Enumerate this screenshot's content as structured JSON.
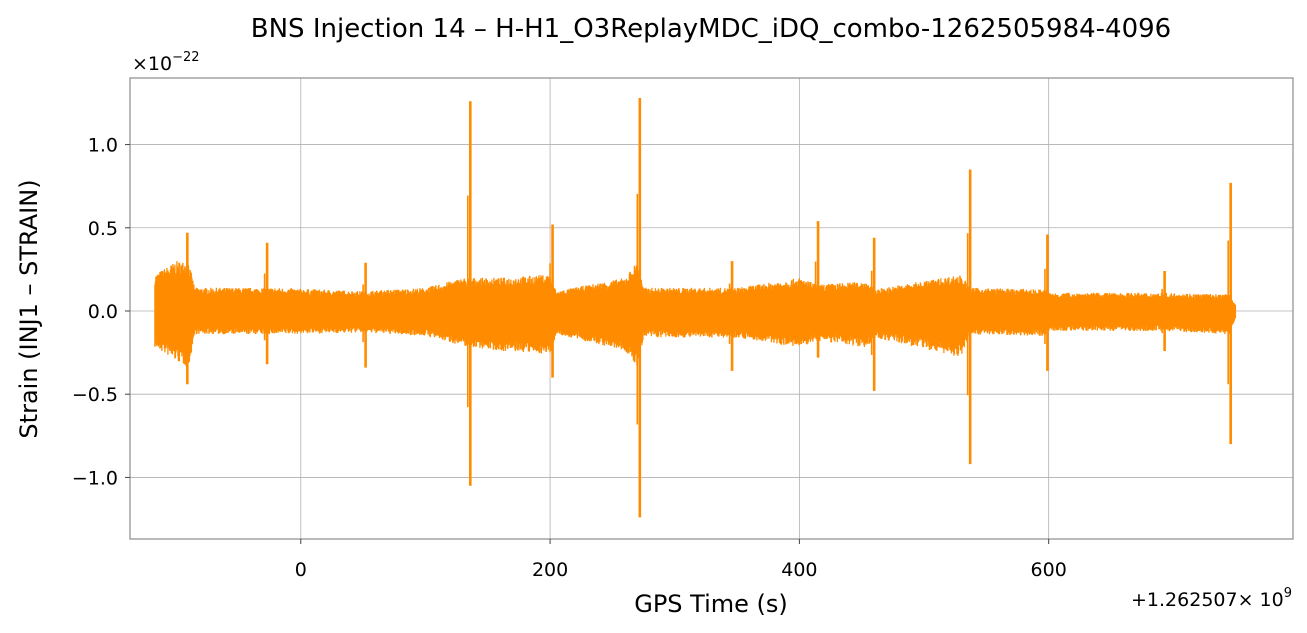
{
  "chart_data": {
    "type": "line",
    "title": "BNS Injection 14 – H-H1_O3ReplayMDC_iDQ_combo-1262505984-4096",
    "xlabel": "GPS Time (s)",
    "ylabel": "Strain (INJ1 – STRAIN)",
    "x_offset_label": "+1.262507",
    "x_offset_exponent": "9",
    "y_scale_base": "×10",
    "y_scale_exponent": "−22",
    "xlim": [
      -137,
      796
    ],
    "ylim": [
      -1.37,
      1.4
    ],
    "x_ticks": [
      0,
      200,
      400,
      600
    ],
    "x_tick_labels": [
      "0",
      "200",
      "400",
      "600"
    ],
    "y_ticks": [
      -1.0,
      -0.5,
      0.0,
      0.5,
      1.0
    ],
    "y_tick_labels": [
      "−1.0",
      "−0.5",
      "0.0",
      "0.5",
      "1.0"
    ],
    "grid": true,
    "color": "#ff8c00",
    "series": [
      {
        "x_range": [
          -117,
          750
        ],
        "envelope": [
          [
            -117,
            0.22,
            -0.22
          ],
          [
            -100,
            0.3,
            -0.3
          ],
          [
            -90,
            0.3,
            -0.34
          ],
          [
            -85,
            0.14,
            -0.14
          ],
          [
            -20,
            0.14,
            -0.14
          ],
          [
            50,
            0.12,
            -0.13
          ],
          [
            100,
            0.14,
            -0.15
          ],
          [
            130,
            0.2,
            -0.21
          ],
          [
            160,
            0.2,
            -0.24
          ],
          [
            200,
            0.22,
            -0.26
          ],
          [
            205,
            0.12,
            -0.14
          ],
          [
            260,
            0.2,
            -0.24
          ],
          [
            270,
            0.3,
            -0.34
          ],
          [
            275,
            0.14,
            -0.16
          ],
          [
            350,
            0.14,
            -0.16
          ],
          [
            400,
            0.2,
            -0.22
          ],
          [
            415,
            0.16,
            -0.18
          ],
          [
            455,
            0.18,
            -0.22
          ],
          [
            460,
            0.13,
            -0.16
          ],
          [
            530,
            0.22,
            -0.28
          ],
          [
            537,
            0.14,
            -0.14
          ],
          [
            597,
            0.13,
            -0.15
          ],
          [
            600,
            0.11,
            -0.12
          ],
          [
            690,
            0.11,
            -0.12
          ],
          [
            745,
            0.1,
            -0.14
          ],
          [
            750,
            0.04,
            -0.05
          ]
        ],
        "spikes": [
          [
            -91,
            0.47,
            -0.44
          ],
          [
            -27,
            0.41,
            -0.32
          ],
          [
            52,
            0.29,
            -0.34
          ],
          [
            136,
            1.26,
            -1.05
          ],
          [
            202,
            0.52,
            -0.4
          ],
          [
            272,
            1.28,
            -1.24
          ],
          [
            346,
            0.3,
            -0.36
          ],
          [
            415,
            0.54,
            -0.28
          ],
          [
            460,
            0.44,
            -0.48
          ],
          [
            537,
            0.85,
            -0.92
          ],
          [
            599,
            0.46,
            -0.36
          ],
          [
            693,
            0.24,
            -0.24
          ],
          [
            746,
            0.77,
            -0.8
          ]
        ]
      }
    ]
  }
}
